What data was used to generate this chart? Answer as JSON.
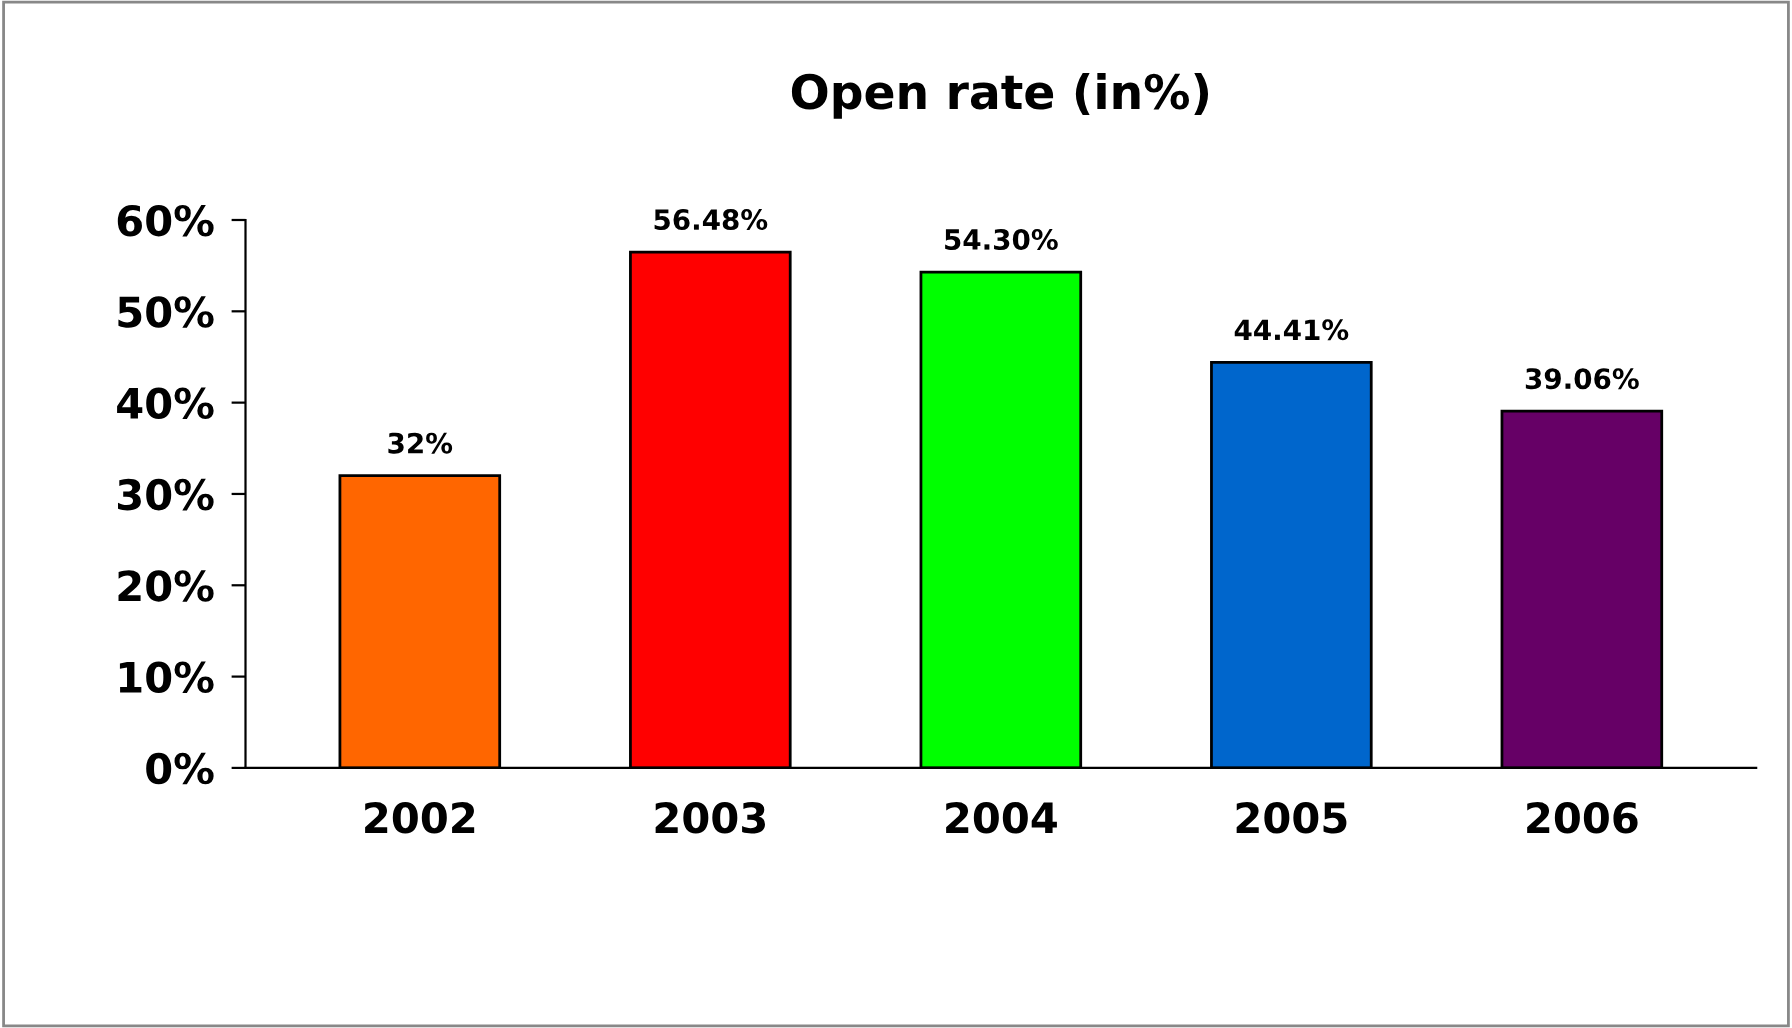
{
  "chart_data": {
    "type": "bar",
    "title": "Open rate (in%)",
    "categories": [
      "2002",
      "2003",
      "2004",
      "2005",
      "2006"
    ],
    "values": [
      32,
      56.48,
      54.3,
      44.41,
      39.06
    ],
    "colors": [
      "#ff6600",
      "#ff0000",
      "#00ff00",
      "#0066cc",
      "#660066"
    ],
    "value_labels": [
      "32%",
      "56.48%",
      "54.30%",
      "44.41%",
      "39.06%"
    ],
    "ylim": [
      0,
      60
    ],
    "yticks": [
      {
        "value": 0,
        "label": "0%"
      },
      {
        "value": 10,
        "label": "10%"
      },
      {
        "value": 20,
        "label": "20%"
      },
      {
        "value": 30,
        "label": "30%"
      },
      {
        "value": 40,
        "label": "40%"
      },
      {
        "value": 50,
        "label": "50%"
      },
      {
        "value": 60,
        "label": "60%"
      }
    ],
    "grid": false,
    "legend": false
  }
}
